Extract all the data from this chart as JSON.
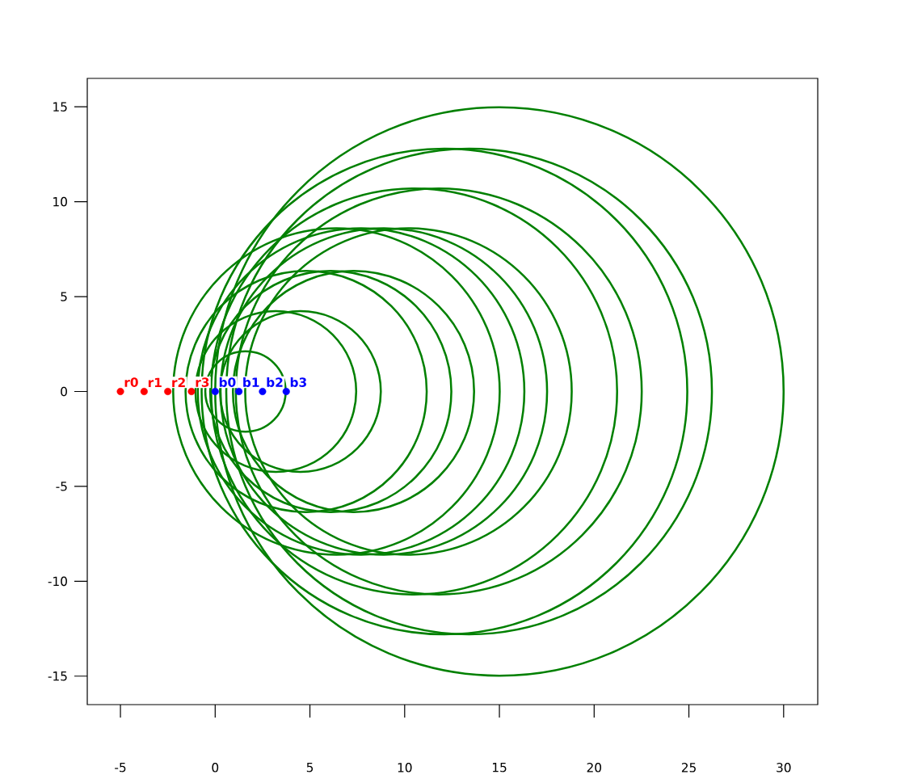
{
  "chart_data": {
    "type": "bubble",
    "xlim": [
      -6.75,
      31.8
    ],
    "ylim": [
      -16.5,
      16.5
    ],
    "xticks": [
      -5,
      0,
      5,
      10,
      15,
      20,
      25,
      30
    ],
    "yticks": [
      -15,
      -10,
      -5,
      0,
      5,
      10,
      15
    ],
    "series": [
      {
        "color": "#008000",
        "x": [
          1.6,
          3.2,
          4.5,
          4.8,
          6.1,
          7.3,
          6.4,
          7.7,
          8.9,
          10.2,
          10.5,
          11.8,
          12.1,
          13.4,
          15
        ],
        "values": [
          0,
          0,
          0,
          0,
          0,
          0,
          0,
          0,
          0,
          0,
          0,
          0,
          0,
          0,
          0
        ],
        "sizes": [
          0.02,
          0.08,
          0.08,
          0.18,
          0.18,
          0.18,
          0.33,
          0.33,
          0.33,
          0.33,
          0.51,
          0.51,
          0.73,
          0.73,
          1
        ]
      },
      {
        "type": "scatter",
        "color": "#ff0000",
        "x": [
          -5,
          -3.75,
          -2.5,
          -1.25
        ],
        "values": [
          0,
          0,
          0,
          0
        ],
        "value_labels": [
          "r0",
          "r1",
          "r2",
          "r3"
        ]
      },
      {
        "type": "scatter",
        "color": "#0000ff",
        "x": [
          0,
          1.25,
          2.5,
          3.75
        ],
        "values": [
          0,
          0,
          0,
          0
        ],
        "value_labels": [
          "b0",
          "b1",
          "b2",
          "b3"
        ]
      }
    ]
  }
}
